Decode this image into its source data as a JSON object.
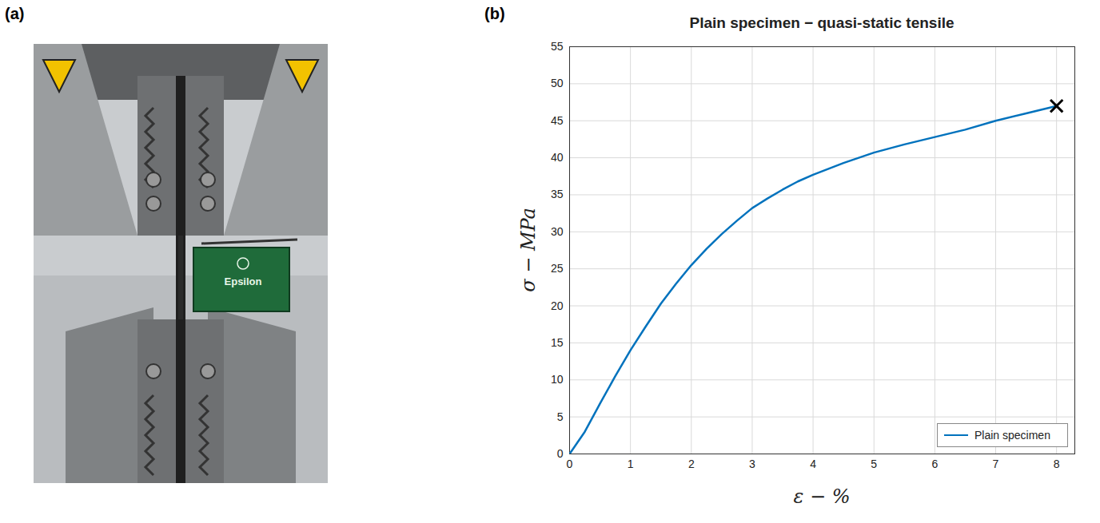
{
  "panel_a": {
    "label": "(a)",
    "texts": [
      "Epsilon"
    ]
  },
  "chart_data": {
    "type": "line",
    "panel_label": "(b)",
    "title": "Plain specimen − quasi-static tensile",
    "x_label": "ε − %",
    "y_label": "σ − MPa",
    "xlim": [
      0,
      8.3
    ],
    "ylim": [
      0,
      55
    ],
    "xticks": [
      0,
      1,
      2,
      3,
      4,
      5,
      6,
      7,
      8
    ],
    "yticks": [
      0,
      5,
      10,
      15,
      20,
      25,
      30,
      35,
      40,
      45,
      50,
      55
    ],
    "grid": true,
    "legend": "bottom-right",
    "series": [
      {
        "name": "Plain specimen",
        "color": "#0072BD",
        "x": [
          0,
          0.25,
          0.5,
          0.75,
          1,
          1.25,
          1.5,
          1.75,
          2,
          2.25,
          2.5,
          2.75,
          3,
          3.25,
          3.5,
          3.75,
          4,
          4.5,
          5,
          5.5,
          6,
          6.5,
          7,
          7.5,
          8
        ],
        "values": [
          0,
          3,
          6.8,
          10.5,
          14,
          17.2,
          20.3,
          23,
          25.5,
          27.7,
          29.7,
          31.5,
          33.2,
          34.5,
          35.7,
          36.8,
          37.7,
          39.3,
          40.7,
          41.8,
          42.8,
          43.8,
          45,
          46,
          47
        ]
      }
    ],
    "failure": {
      "x": 8,
      "y": 47,
      "marker": "x",
      "color": "#000000"
    }
  }
}
